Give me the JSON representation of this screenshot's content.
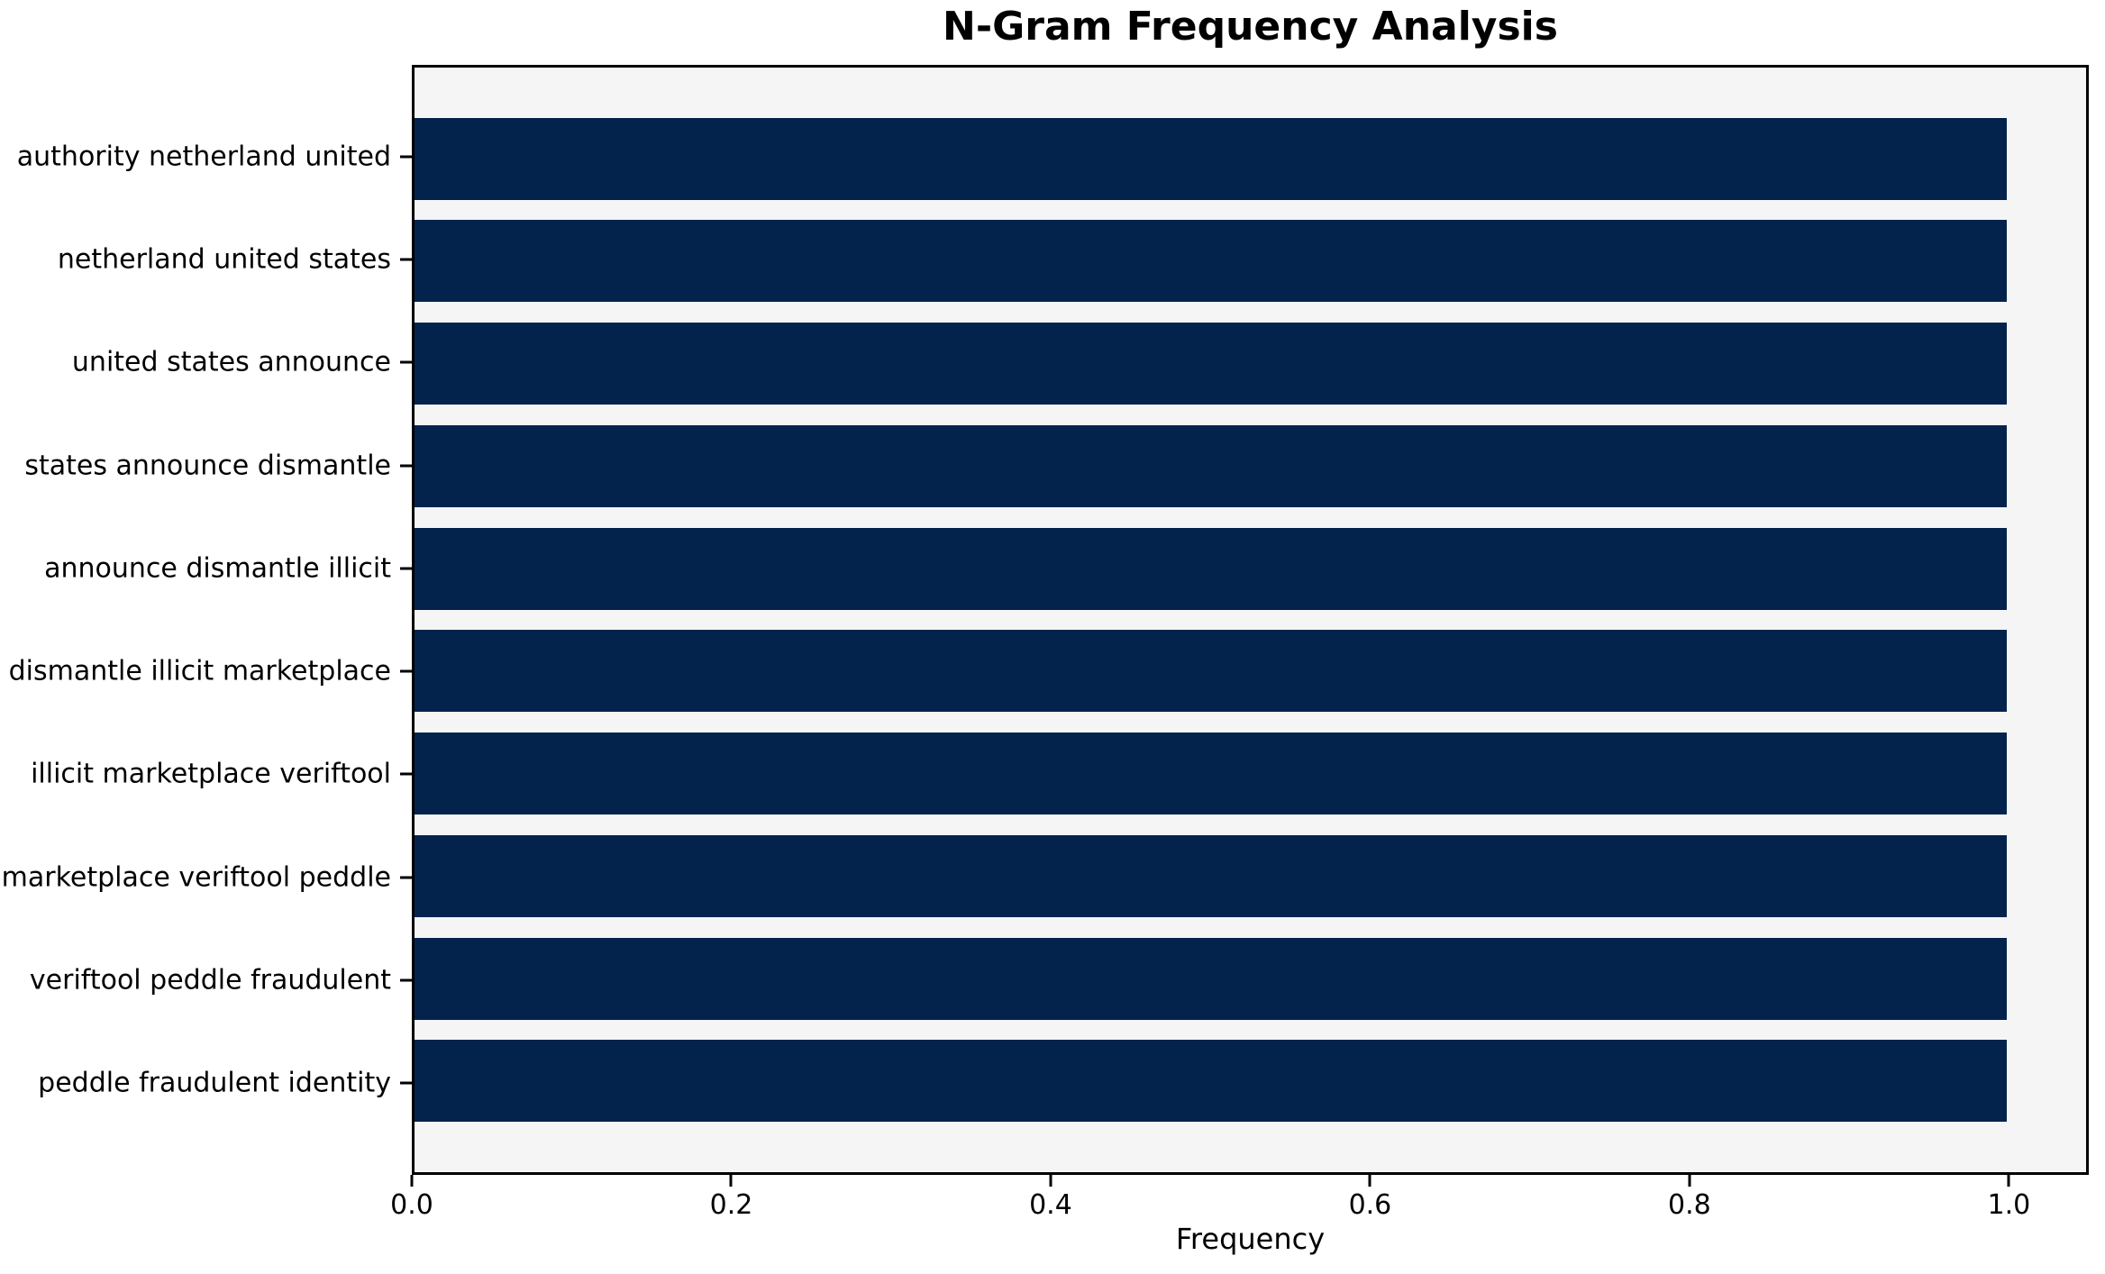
{
  "chart_data": {
    "type": "bar",
    "orientation": "horizontal",
    "title": "N-Gram Frequency Analysis",
    "xlabel": "Frequency",
    "ylabel": "",
    "categories": [
      "authority netherland united",
      "netherland united states",
      "united states announce",
      "states announce dismantle",
      "announce dismantle illicit",
      "dismantle illicit marketplace",
      "illicit marketplace veriftool",
      "marketplace veriftool peddle",
      "veriftool peddle fraudulent",
      "peddle fraudulent identity"
    ],
    "values": [
      1.0,
      1.0,
      1.0,
      1.0,
      1.0,
      1.0,
      1.0,
      1.0,
      1.0,
      1.0
    ],
    "x_ticks": [
      0.0,
      0.2,
      0.4,
      0.6,
      0.8,
      1.0
    ],
    "x_tick_labels": [
      "0.0",
      "0.2",
      "0.4",
      "0.6",
      "0.8",
      "1.0"
    ],
    "xlim": [
      0,
      1.05
    ],
    "bar_height_fraction": 0.8,
    "grid": false,
    "legend": false,
    "colors": {
      "bar": "#03234d",
      "plot_background": "#f5f5f6",
      "figure_background": "#ffffff",
      "spine": "#000000",
      "text": "#000000"
    }
  }
}
